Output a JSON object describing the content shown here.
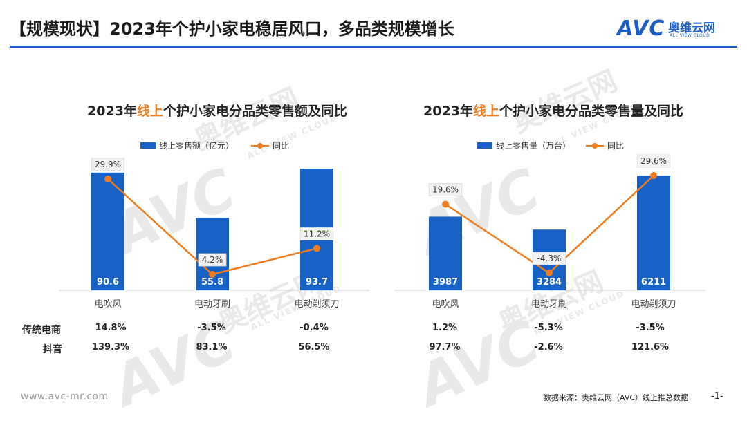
{
  "page": {
    "title": "【规模现状】2023年个护小家电稳居风口，多品类规模增长",
    "logo_mark": "AVC",
    "logo_cn": "奥维云网",
    "logo_en": "ALL VIEW CLOUD",
    "website": "www.avc-mr.com",
    "source": "数据来源：奥维云网（AVC）线上推总数据",
    "page_number": "-1-"
  },
  "colors": {
    "bar": "#1762c4",
    "line": "#f07c1f",
    "accent": "#1c5fc4"
  },
  "chart_data": [
    {
      "type": "bar",
      "title_prefix": "2023年",
      "title_highlight": "线上",
      "title_suffix": "个护小家电分品类零售额及同比",
      "categories": [
        "电吹风",
        "电动牙刷",
        "电动剃须刀"
      ],
      "series": [
        {
          "name": "线上零售额（亿元）",
          "type": "bar",
          "values": [
            90.6,
            55.8,
            93.7
          ],
          "labels": [
            "90.6",
            "55.8",
            "93.7"
          ]
        },
        {
          "name": "同比",
          "type": "line",
          "values": [
            29.9,
            4.2,
            11.2
          ],
          "labels": [
            "29.9%",
            "4.2%",
            "11.2%"
          ]
        }
      ],
      "rows": [
        {
          "label": "传统电商",
          "values": [
            "14.8%",
            "-3.5%",
            "-0.4%"
          ]
        },
        {
          "label": "抖音",
          "values": [
            "139.3%",
            "83.1%",
            "56.5%"
          ]
        }
      ]
    },
    {
      "type": "bar",
      "title_prefix": "2023年",
      "title_highlight": "线上",
      "title_suffix": "个护小家电分品类零售量及同比",
      "categories": [
        "电吹风",
        "电动牙刷",
        "电动剃须刀"
      ],
      "series": [
        {
          "name": "线上零售量（万台）",
          "type": "bar",
          "values": [
            3987,
            3284,
            6211
          ],
          "labels": [
            "3987",
            "3284",
            "6211"
          ]
        },
        {
          "name": "同比",
          "type": "line",
          "values": [
            19.6,
            -4.3,
            29.6
          ],
          "labels": [
            "19.6%",
            "-4.3%",
            "29.6%"
          ]
        }
      ],
      "rows": [
        {
          "values": [
            "1.2%",
            "-5.3%",
            "-3.5%"
          ]
        },
        {
          "values": [
            "97.7%",
            "-2.6%",
            "121.6%"
          ]
        }
      ]
    }
  ]
}
